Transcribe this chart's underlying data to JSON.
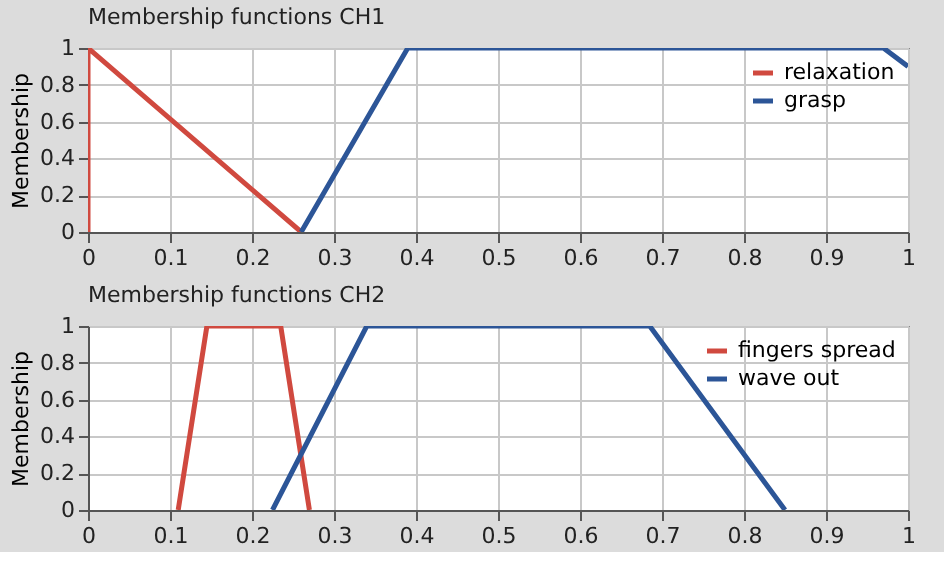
{
  "chart_data": [
    {
      "type": "line",
      "title": "Membership functions CH1",
      "ylabel": "Membership",
      "xlim": [
        0,
        1
      ],
      "xticks": [
        0,
        0.1,
        0.2,
        0.3,
        0.4,
        0.5,
        0.6,
        0.7,
        0.8,
        0.9,
        1
      ],
      "ylim": [
        0,
        1
      ],
      "yticks": [
        0,
        0.2,
        0.4,
        0.6,
        0.8,
        1
      ],
      "grid": true,
      "legend": "top right",
      "series": [
        {
          "name": "relaxation",
          "color": "#d0493f",
          "x": [
            0,
            0,
            0.26
          ],
          "values": [
            0,
            1,
            0
          ]
        },
        {
          "name": "grasp",
          "color": "#2c5597",
          "x": [
            0.26,
            0.39,
            0.97,
            1
          ],
          "values": [
            0,
            1,
            1,
            0.9
          ]
        }
      ]
    },
    {
      "type": "line",
      "title": "Membership functions CH2",
      "ylabel": "Membership",
      "xlim": [
        0,
        1
      ],
      "xticks": [
        0,
        0.1,
        0.2,
        0.3,
        0.4,
        0.5,
        0.6,
        0.7,
        0.8,
        0.9,
        1
      ],
      "ylim": [
        0,
        1
      ],
      "yticks": [
        0,
        0.2,
        0.4,
        0.6,
        0.8,
        1
      ],
      "grid": true,
      "legend": "top right",
      "series": [
        {
          "name": "fingers spread",
          "color": "#d0493f",
          "x": [
            0.11,
            0.145,
            0.235,
            0.27
          ],
          "values": [
            0,
            1,
            1,
            0
          ]
        },
        {
          "name": "wave out",
          "color": "#2c5597",
          "x": [
            0.225,
            0.34,
            0.685,
            0.85
          ],
          "values": [
            0,
            1,
            1,
            0
          ]
        }
      ]
    }
  ]
}
